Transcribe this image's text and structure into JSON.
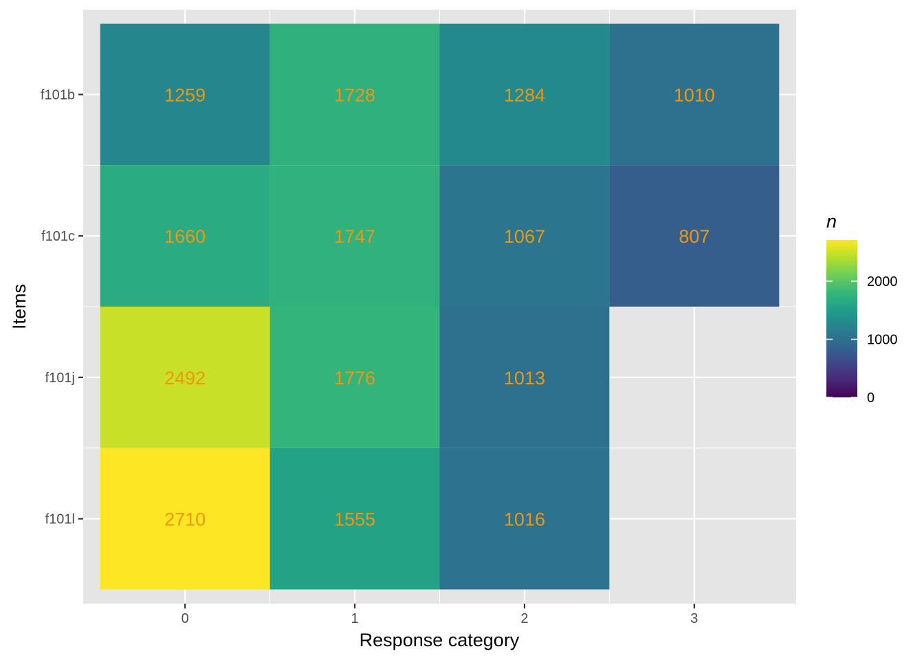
{
  "chart_data": {
    "type": "heatmap",
    "xlabel": "Response category",
    "ylabel": "Items",
    "x_categories": [
      "0",
      "1",
      "2",
      "3"
    ],
    "y_categories": [
      "f101b",
      "f101c",
      "f101j",
      "f101l"
    ],
    "cells": [
      {
        "x": "0",
        "y": "f101b",
        "value": 1259
      },
      {
        "x": "1",
        "y": "f101b",
        "value": 1728
      },
      {
        "x": "2",
        "y": "f101b",
        "value": 1284
      },
      {
        "x": "3",
        "y": "f101b",
        "value": 1010
      },
      {
        "x": "0",
        "y": "f101c",
        "value": 1660
      },
      {
        "x": "1",
        "y": "f101c",
        "value": 1747
      },
      {
        "x": "2",
        "y": "f101c",
        "value": 1067
      },
      {
        "x": "3",
        "y": "f101c",
        "value": 807
      },
      {
        "x": "0",
        "y": "f101j",
        "value": 2492
      },
      {
        "x": "1",
        "y": "f101j",
        "value": 1776
      },
      {
        "x": "2",
        "y": "f101j",
        "value": 1013
      },
      {
        "x": "0",
        "y": "f101l",
        "value": 2710
      },
      {
        "x": "1",
        "y": "f101l",
        "value": 1555
      },
      {
        "x": "2",
        "y": "f101l",
        "value": 1016
      }
    ],
    "color_scale": {
      "title": "n",
      "name": "viridis",
      "min": 0,
      "max": 2710,
      "ticks": [
        0,
        1000,
        2000
      ]
    },
    "label_color": "#f0960f",
    "panel_background": "#e5e5e5",
    "grid": true,
    "legend_position": "right"
  }
}
